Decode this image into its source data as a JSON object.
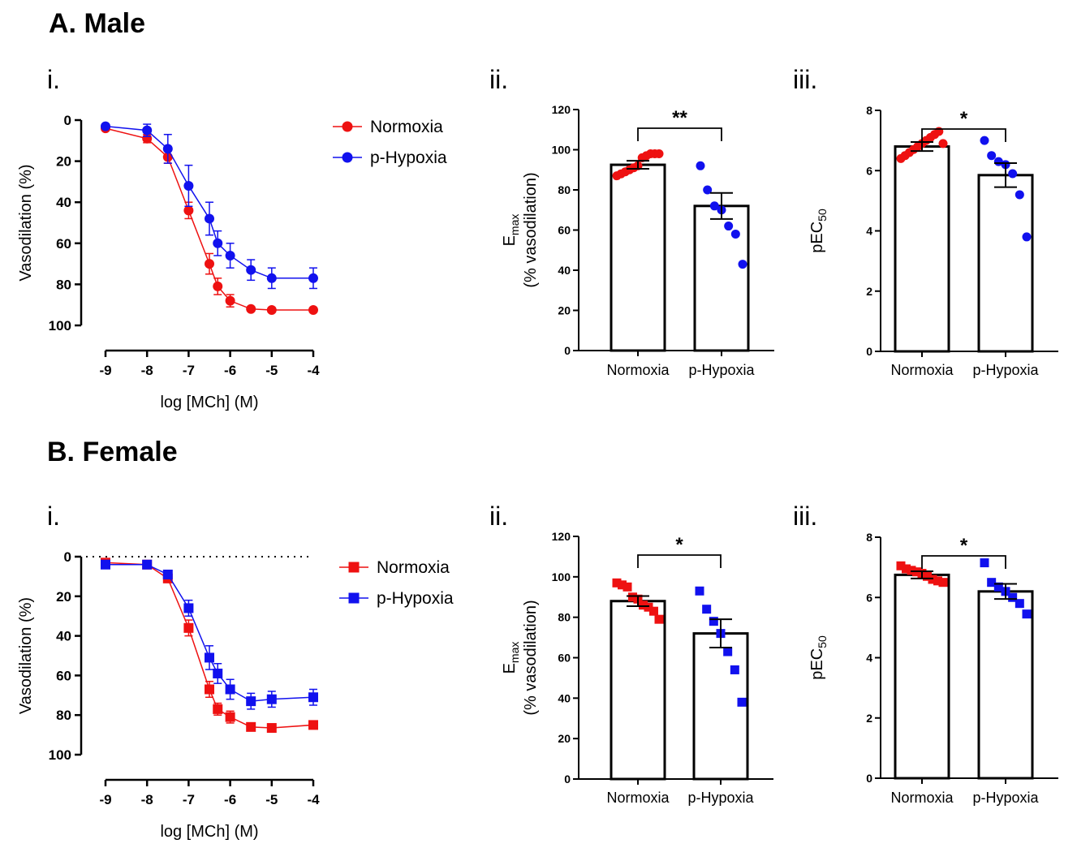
{
  "sections": {
    "male": {
      "title": "A. Male"
    },
    "female": {
      "title": "B. Female"
    }
  },
  "panel_labels": {
    "i": "i.",
    "ii": "ii.",
    "iii": "iii."
  },
  "colors": {
    "normoxia": "#ee1111",
    "hypoxia": "#1111ee",
    "axis": "#000000"
  },
  "chart_data": [
    {
      "id": "male-curve",
      "type": "line",
      "section": "A. Male",
      "xlabel": "log [MCh] (M)",
      "ylabel": "Vasodilation (%)",
      "x_ticks": [
        "-9",
        "-8",
        "-7",
        "-6",
        "-5",
        "-4"
      ],
      "y_ticks": [
        "0",
        "20",
        "40",
        "60",
        "80",
        "100"
      ],
      "xlim": [
        -9,
        -4
      ],
      "ylim": [
        0,
        100
      ],
      "y_inverted": true,
      "marker": "circle",
      "zero_dotted_line": false,
      "x": [
        -9,
        -8,
        -7.5,
        -7,
        -6.5,
        -6.3,
        -6,
        -5.5,
        -5,
        -4
      ],
      "series": [
        {
          "name": "Normoxia",
          "color": "#ee1111",
          "values": [
            4,
            9,
            18,
            44,
            70,
            81,
            88,
            92,
            92.5,
            92.5
          ],
          "errors": [
            1,
            2,
            3,
            4,
            5,
            4,
            3,
            1,
            1,
            1
          ]
        },
        {
          "name": "p-Hypoxia",
          "color": "#1111ee",
          "values": [
            3,
            5,
            14,
            32,
            48,
            60,
            66,
            73,
            77,
            77
          ],
          "errors": [
            1,
            3,
            7,
            10,
            8,
            6,
            6,
            5,
            5,
            5
          ]
        }
      ]
    },
    {
      "id": "male-emax",
      "type": "bar",
      "section": "A. Male",
      "ylabel_main": "E",
      "ylabel_sub": "max",
      "ylabel_paren": "(% vasodilation)",
      "categories": [
        "Normoxia",
        "p-Hypoxia"
      ],
      "y_ticks": [
        "0",
        "20",
        "40",
        "60",
        "80",
        "100",
        "120"
      ],
      "ylim": [
        0,
        120
      ],
      "marker": "circle",
      "values": [
        92.5,
        72
      ],
      "errors": [
        2,
        6.5
      ],
      "points": [
        [
          87,
          88,
          89,
          90,
          91,
          92,
          96,
          97,
          98,
          98,
          98
        ],
        [
          92,
          80,
          72,
          70,
          62,
          58,
          43
        ]
      ],
      "significance": "**"
    },
    {
      "id": "male-pec50",
      "type": "bar",
      "section": "A. Male",
      "ylabel_main": "pEC",
      "ylabel_sub": "50",
      "ylabel_paren": "",
      "categories": [
        "Normoxia",
        "p-Hypoxia"
      ],
      "y_ticks": [
        "0",
        "2",
        "4",
        "6",
        "8"
      ],
      "ylim": [
        0,
        8
      ],
      "marker": "circle",
      "values": [
        6.8,
        5.85
      ],
      "errors": [
        0.15,
        0.4
      ],
      "points": [
        [
          6.4,
          6.5,
          6.6,
          6.7,
          6.8,
          6.9,
          7.0,
          7.1,
          7.2,
          7.3,
          6.9
        ],
        [
          7.0,
          6.5,
          6.3,
          6.2,
          5.9,
          5.2,
          3.8
        ]
      ],
      "significance": "*"
    },
    {
      "id": "female-curve",
      "type": "line",
      "section": "B. Female",
      "xlabel": "log [MCh] (M)",
      "ylabel": "Vasodilation (%)",
      "x_ticks": [
        "-9",
        "-8",
        "-7",
        "-6",
        "-5",
        "-4"
      ],
      "y_ticks": [
        "0",
        "20",
        "40",
        "60",
        "80",
        "100"
      ],
      "xlim": [
        -9,
        -4
      ],
      "ylim": [
        0,
        100
      ],
      "y_inverted": true,
      "marker": "square",
      "zero_dotted_line": true,
      "x": [
        -9,
        -8,
        -7.5,
        -7,
        -6.5,
        -6.3,
        -6,
        -5.5,
        -5,
        -4
      ],
      "series": [
        {
          "name": "Normoxia",
          "color": "#ee1111",
          "values": [
            3,
            4,
            11,
            36,
            67,
            77,
            81,
            86,
            86.5,
            85
          ],
          "errors": [
            1,
            1,
            2,
            4,
            4,
            3,
            3,
            2,
            2,
            2
          ]
        },
        {
          "name": "p-Hypoxia",
          "color": "#1111ee",
          "values": [
            4,
            4,
            9,
            26,
            51,
            59,
            67,
            73,
            72,
            71
          ],
          "errors": [
            1,
            1,
            2,
            4,
            6,
            5,
            5,
            4,
            4,
            4
          ]
        }
      ]
    },
    {
      "id": "female-emax",
      "type": "bar",
      "section": "B. Female",
      "ylabel_main": "E",
      "ylabel_sub": "max",
      "ylabel_paren": "(% vasodilation)",
      "categories": [
        "Normoxia",
        "p-Hypoxia"
      ],
      "y_ticks": [
        "0",
        "20",
        "40",
        "60",
        "80",
        "100",
        "120"
      ],
      "ylim": [
        0,
        120
      ],
      "marker": "square",
      "values": [
        88,
        72
      ],
      "errors": [
        2.5,
        7
      ],
      "points": [
        [
          97,
          96,
          95,
          90,
          89,
          86,
          85,
          83,
          79
        ],
        [
          93,
          84,
          78,
          72,
          63,
          54,
          38
        ]
      ],
      "significance": "*"
    },
    {
      "id": "female-pec50",
      "type": "bar",
      "section": "B. Female",
      "ylabel_main": "pEC",
      "ylabel_sub": "50",
      "ylabel_paren": "",
      "categories": [
        "Normoxia",
        "p-Hypoxia"
      ],
      "y_ticks": [
        "0",
        "2",
        "4",
        "6",
        "8"
      ],
      "ylim": [
        0,
        8
      ],
      "marker": "square",
      "values": [
        6.75,
        6.2
      ],
      "errors": [
        0.12,
        0.25
      ],
      "points": [
        [
          7.05,
          6.95,
          6.9,
          6.85,
          6.8,
          6.7,
          6.6,
          6.55,
          6.5
        ],
        [
          7.15,
          6.5,
          6.35,
          6.2,
          6.0,
          5.8,
          5.45
        ]
      ],
      "significance": "*"
    }
  ]
}
